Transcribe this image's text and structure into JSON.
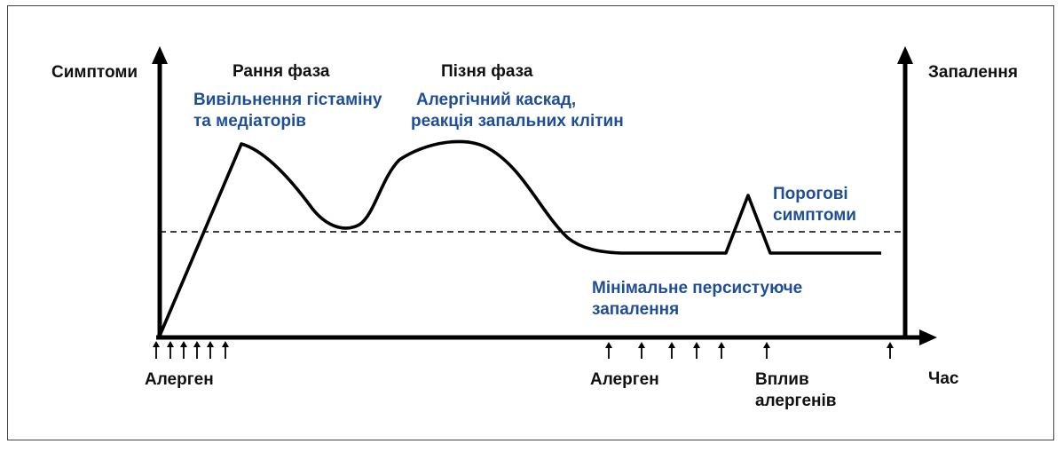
{
  "colors": {
    "line": "#000000",
    "text": "#111111",
    "accent": "#1f4e99"
  },
  "labels": {
    "y_left": "Симптоми",
    "y_right": "Запалення",
    "x_axis": "Час",
    "early_phase_title": "Рання фаза",
    "early_phase_desc": [
      "Вивільнення гістаміну",
      "та медіаторів"
    ],
    "late_phase_title": "Пізня фаза",
    "late_phase_desc": [
      "Алергічний каскад,",
      "реакція запальних клітин"
    ],
    "threshold": [
      "Порогові",
      "симптоми"
    ],
    "minimal_inflammation": [
      "Мінімальне персистуюче",
      "запалення"
    ],
    "allergen_1": "Алерген",
    "allergen_2": "Алерген",
    "exposure": [
      "Вплив",
      "алергенів"
    ]
  }
}
